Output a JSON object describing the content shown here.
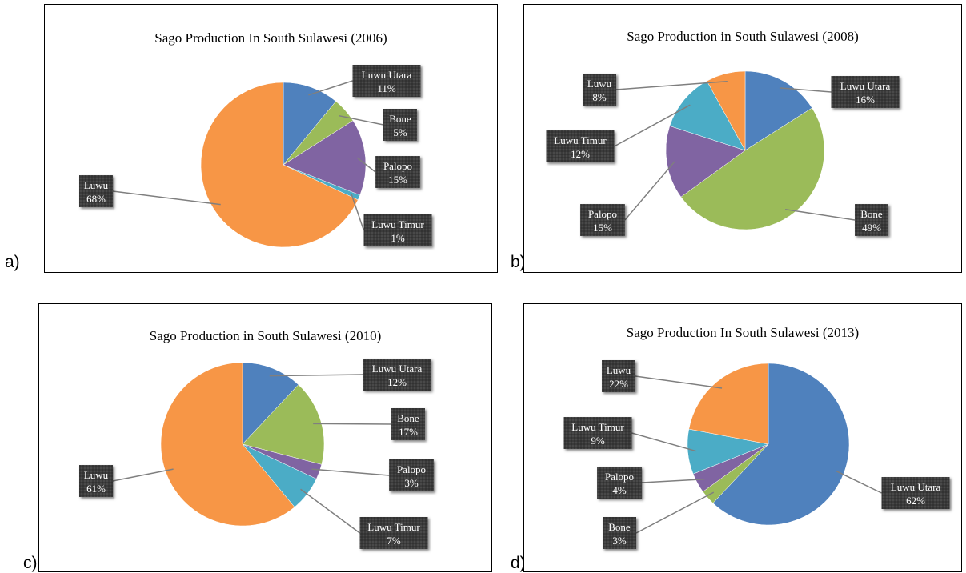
{
  "panels": [
    {
      "letter": "a)"
    },
    {
      "letter": "b)"
    },
    {
      "letter": "c)"
    },
    {
      "letter": "d)"
    }
  ],
  "chart_data": [
    {
      "type": "pie",
      "title": "Sago Production In South Sulawesi (2006)",
      "slices": [
        {
          "name": "Luwu Utara",
          "value": 11,
          "label": "11%",
          "color": "#4F81BD"
        },
        {
          "name": "Bone",
          "value": 5,
          "label": "5%",
          "color": "#9BBB59"
        },
        {
          "name": "Palopo",
          "value": 15,
          "label": "15%",
          "color": "#8064A2"
        },
        {
          "name": "Luwu Timur",
          "value": 1,
          "label": "1%",
          "color": "#4BACC6"
        },
        {
          "name": "Luwu",
          "value": 68,
          "label": "68%",
          "color": "#F79646"
        }
      ]
    },
    {
      "type": "pie",
      "title": "Sago Production in South Sulawesi (2008)",
      "slices": [
        {
          "name": "Luwu Utara",
          "value": 16,
          "label": "16%",
          "color": "#4F81BD"
        },
        {
          "name": "Bone",
          "value": 49,
          "label": "49%",
          "color": "#9BBB59"
        },
        {
          "name": "Palopo",
          "value": 15,
          "label": "15%",
          "color": "#8064A2"
        },
        {
          "name": "Luwu Timur",
          "value": 12,
          "label": "12%",
          "color": "#4BACC6"
        },
        {
          "name": "Luwu",
          "value": 8,
          "label": "8%",
          "color": "#F79646"
        }
      ]
    },
    {
      "type": "pie",
      "title": "Sago Production in South Sulawesi (2010)",
      "slices": [
        {
          "name": "Luwu Utara",
          "value": 12,
          "label": "12%",
          "color": "#4F81BD"
        },
        {
          "name": "Bone",
          "value": 17,
          "label": "17%",
          "color": "#9BBB59"
        },
        {
          "name": "Palopo",
          "value": 3,
          "label": "3%",
          "color": "#8064A2"
        },
        {
          "name": "Luwu Timur",
          "value": 7,
          "label": "7%",
          "color": "#4BACC6"
        },
        {
          "name": "Luwu",
          "value": 61,
          "label": "61%",
          "color": "#F79646"
        }
      ]
    },
    {
      "type": "pie",
      "title": "Sago Production In South Sulawesi (2013)",
      "slices": [
        {
          "name": "Luwu Utara",
          "value": 62,
          "label": "62%",
          "color": "#4F81BD"
        },
        {
          "name": "Bone",
          "value": 3,
          "label": "3%",
          "color": "#9BBB59"
        },
        {
          "name": "Palopo",
          "value": 4,
          "label": "4%",
          "color": "#8064A2"
        },
        {
          "name": "Luwu Timur",
          "value": 9,
          "label": "9%",
          "color": "#4BACC6"
        },
        {
          "name": "Luwu",
          "value": 22,
          "label": "22%",
          "color": "#F79646"
        }
      ]
    }
  ]
}
